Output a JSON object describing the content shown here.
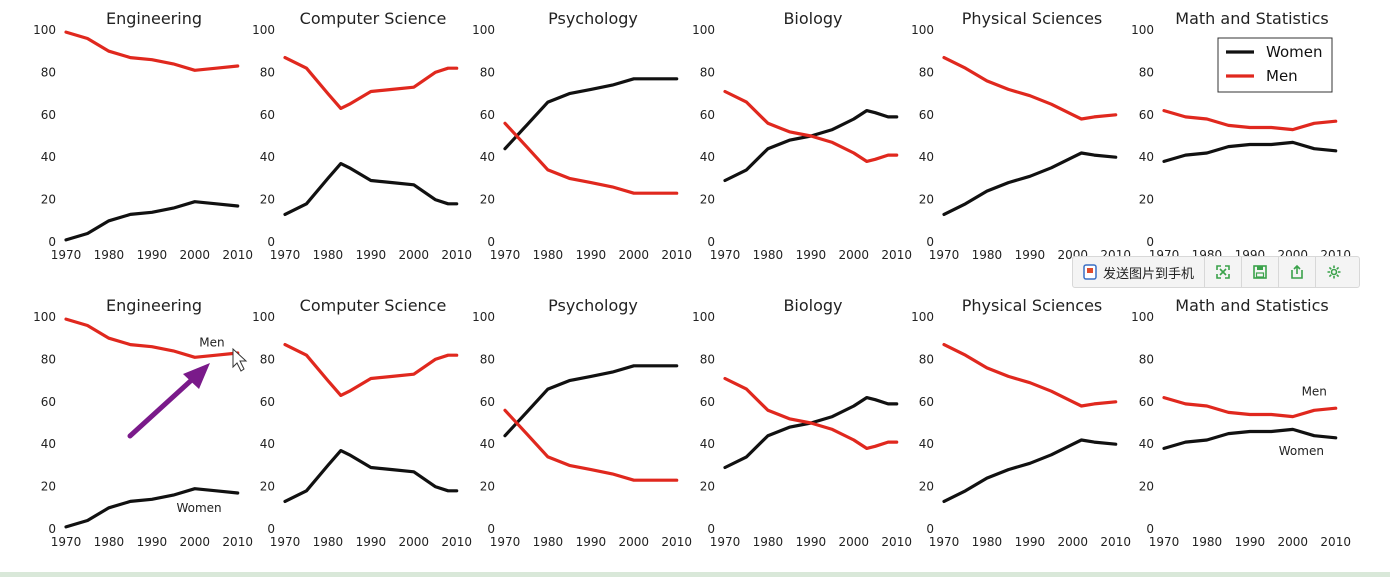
{
  "chart_data": [
    {
      "type": "line",
      "title": "Engineering",
      "panel": "top",
      "ylim": [
        0,
        100
      ],
      "xlim": [
        1970,
        2011
      ],
      "x": [
        1970,
        1975,
        1980,
        1985,
        1990,
        1995,
        2000,
        2005,
        2010
      ],
      "series": [
        {
          "name": "Women",
          "color": "#111111",
          "values": [
            1,
            4,
            10,
            13,
            14,
            16,
            19,
            18,
            17
          ]
        },
        {
          "name": "Men",
          "color": "#e0281e",
          "values": [
            99,
            96,
            90,
            87,
            86,
            84,
            81,
            82,
            83
          ]
        }
      ]
    },
    {
      "type": "line",
      "title": "Computer Science",
      "panel": "top",
      "ylim": [
        0,
        100
      ],
      "xlim": [
        1970,
        2011
      ],
      "x": [
        1970,
        1975,
        1980,
        1983,
        1985,
        1990,
        1995,
        2000,
        2005,
        2008,
        2010
      ],
      "series": [
        {
          "name": "Women",
          "color": "#111111",
          "values": [
            13,
            18,
            30,
            37,
            35,
            29,
            28,
            27,
            20,
            18,
            18
          ]
        },
        {
          "name": "Men",
          "color": "#e0281e",
          "values": [
            87,
            82,
            70,
            63,
            65,
            71,
            72,
            73,
            80,
            82,
            82
          ]
        }
      ]
    },
    {
      "type": "line",
      "title": "Psychology",
      "panel": "top",
      "ylim": [
        0,
        100
      ],
      "xlim": [
        1970,
        2011
      ],
      "x": [
        1970,
        1975,
        1980,
        1985,
        1990,
        1995,
        2000,
        2005,
        2010
      ],
      "series": [
        {
          "name": "Women",
          "color": "#111111",
          "values": [
            44,
            55,
            66,
            70,
            72,
            74,
            77,
            77,
            77
          ]
        },
        {
          "name": "Men",
          "color": "#e0281e",
          "values": [
            56,
            45,
            34,
            30,
            28,
            26,
            23,
            23,
            23
          ]
        }
      ]
    },
    {
      "type": "line",
      "title": "Biology",
      "panel": "top",
      "ylim": [
        0,
        100
      ],
      "xlim": [
        1970,
        2011
      ],
      "x": [
        1970,
        1975,
        1980,
        1985,
        1990,
        1995,
        2000,
        2003,
        2005,
        2008,
        2010
      ],
      "series": [
        {
          "name": "Women",
          "color": "#111111",
          "values": [
            29,
            34,
            44,
            48,
            50,
            53,
            58,
            62,
            61,
            59,
            59
          ]
        },
        {
          "name": "Men",
          "color": "#e0281e",
          "values": [
            71,
            66,
            56,
            52,
            50,
            47,
            42,
            38,
            39,
            41,
            41
          ]
        }
      ]
    },
    {
      "type": "line",
      "title": "Physical Sciences",
      "panel": "top",
      "ylim": [
        0,
        100
      ],
      "xlim": [
        1970,
        2011
      ],
      "x": [
        1970,
        1975,
        1980,
        1985,
        1990,
        1995,
        2000,
        2002,
        2005,
        2010
      ],
      "series": [
        {
          "name": "Women",
          "color": "#111111",
          "values": [
            13,
            18,
            24,
            28,
            31,
            35,
            40,
            42,
            41,
            40
          ]
        },
        {
          "name": "Men",
          "color": "#e0281e",
          "values": [
            87,
            82,
            76,
            72,
            69,
            65,
            60,
            58,
            59,
            60
          ]
        }
      ]
    },
    {
      "type": "line",
      "title": "Math and Statistics",
      "panel": "top",
      "ylim": [
        0,
        100
      ],
      "xlim": [
        1970,
        2011
      ],
      "legend": "top-right",
      "x": [
        1970,
        1975,
        1980,
        1985,
        1990,
        1995,
        2000,
        2005,
        2010
      ],
      "series": [
        {
          "name": "Women",
          "color": "#111111",
          "values": [
            38,
            41,
            42,
            45,
            46,
            46,
            47,
            44,
            43
          ]
        },
        {
          "name": "Men",
          "color": "#e0281e",
          "values": [
            62,
            59,
            58,
            55,
            54,
            54,
            53,
            56,
            57
          ]
        }
      ]
    },
    {
      "type": "line",
      "title": "Engineering",
      "panel": "bottom",
      "ylim": [
        0,
        100
      ],
      "xlim": [
        1970,
        2011
      ],
      "annotations": [
        {
          "text": "Men",
          "x": 2004,
          "y": 86
        },
        {
          "text": "Women",
          "x": 2001,
          "y": 8
        }
      ],
      "x": [
        1970,
        1975,
        1980,
        1985,
        1990,
        1995,
        2000,
        2005,
        2010
      ],
      "series": [
        {
          "name": "Women",
          "color": "#111111",
          "values": [
            1,
            4,
            10,
            13,
            14,
            16,
            19,
            18,
            17
          ]
        },
        {
          "name": "Men",
          "color": "#e0281e",
          "values": [
            99,
            96,
            90,
            87,
            86,
            84,
            81,
            82,
            83
          ]
        }
      ]
    },
    {
      "type": "line",
      "title": "Computer Science",
      "panel": "bottom",
      "ylim": [
        0,
        100
      ],
      "xlim": [
        1970,
        2011
      ],
      "x": [
        1970,
        1975,
        1980,
        1983,
        1985,
        1990,
        1995,
        2000,
        2005,
        2008,
        2010
      ],
      "series": [
        {
          "name": "Women",
          "color": "#111111",
          "values": [
            13,
            18,
            30,
            37,
            35,
            29,
            28,
            27,
            20,
            18,
            18
          ]
        },
        {
          "name": "Men",
          "color": "#e0281e",
          "values": [
            87,
            82,
            70,
            63,
            65,
            71,
            72,
            73,
            80,
            82,
            82
          ]
        }
      ]
    },
    {
      "type": "line",
      "title": "Psychology",
      "panel": "bottom",
      "ylim": [
        0,
        100
      ],
      "xlim": [
        1970,
        2011
      ],
      "x": [
        1970,
        1975,
        1980,
        1985,
        1990,
        1995,
        2000,
        2005,
        2010
      ],
      "series": [
        {
          "name": "Women",
          "color": "#111111",
          "values": [
            44,
            55,
            66,
            70,
            72,
            74,
            77,
            77,
            77
          ]
        },
        {
          "name": "Men",
          "color": "#e0281e",
          "values": [
            56,
            45,
            34,
            30,
            28,
            26,
            23,
            23,
            23
          ]
        }
      ]
    },
    {
      "type": "line",
      "title": "Biology",
      "panel": "bottom",
      "ylim": [
        0,
        100
      ],
      "xlim": [
        1970,
        2011
      ],
      "x": [
        1970,
        1975,
        1980,
        1985,
        1990,
        1995,
        2000,
        2003,
        2005,
        2008,
        2010
      ],
      "series": [
        {
          "name": "Women",
          "color": "#111111",
          "values": [
            29,
            34,
            44,
            48,
            50,
            53,
            58,
            62,
            61,
            59,
            59
          ]
        },
        {
          "name": "Men",
          "color": "#e0281e",
          "values": [
            71,
            66,
            56,
            52,
            50,
            47,
            42,
            38,
            39,
            41,
            41
          ]
        }
      ]
    },
    {
      "type": "line",
      "title": "Physical Sciences",
      "panel": "bottom",
      "ylim": [
        0,
        100
      ],
      "xlim": [
        1970,
        2011
      ],
      "x": [
        1970,
        1975,
        1980,
        1985,
        1990,
        1995,
        2000,
        2002,
        2005,
        2010
      ],
      "series": [
        {
          "name": "Women",
          "color": "#111111",
          "values": [
            13,
            18,
            24,
            28,
            31,
            35,
            40,
            42,
            41,
            40
          ]
        },
        {
          "name": "Men",
          "color": "#e0281e",
          "values": [
            87,
            82,
            76,
            72,
            69,
            65,
            60,
            58,
            59,
            60
          ]
        }
      ]
    },
    {
      "type": "line",
      "title": "Math and Statistics",
      "panel": "bottom",
      "ylim": [
        0,
        100
      ],
      "xlim": [
        1970,
        2011
      ],
      "annotations": [
        {
          "text": "Men",
          "x": 2005,
          "y": 63
        },
        {
          "text": "Women",
          "x": 2002,
          "y": 35
        }
      ],
      "x": [
        1970,
        1975,
        1980,
        1985,
        1990,
        1995,
        2000,
        2005,
        2010
      ],
      "series": [
        {
          "name": "Women",
          "color": "#111111",
          "values": [
            38,
            41,
            42,
            45,
            46,
            46,
            47,
            44,
            43
          ]
        },
        {
          "name": "Men",
          "color": "#e0281e",
          "values": [
            62,
            59,
            58,
            55,
            54,
            54,
            53,
            56,
            57
          ]
        }
      ]
    }
  ],
  "axis": {
    "yticks": [
      0,
      20,
      40,
      60,
      80,
      100
    ],
    "xticks": [
      1970,
      1980,
      1990,
      2000,
      2010
    ]
  },
  "legend_labels": {
    "women": "Women",
    "men": "Men"
  },
  "overlay": {
    "arrow_color": "#7a1a8a",
    "toolbar": {
      "send_label": "发送图片到手机",
      "buttons": [
        "fullscreen-icon",
        "save-icon",
        "share-icon",
        "settings-icon"
      ],
      "accent": "#3aa24a"
    }
  }
}
